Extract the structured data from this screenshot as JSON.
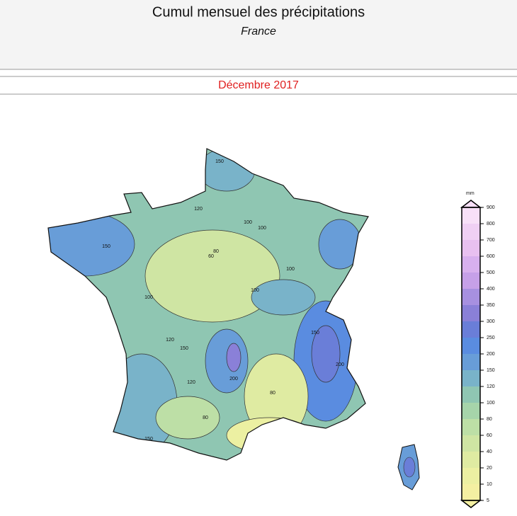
{
  "header": {
    "title": "Cumul mensuel des précipitations",
    "subtitle": "France",
    "period": "Décembre 2017"
  },
  "map": {
    "contour_labels": [
      "150",
      "150",
      "120",
      "100",
      "100",
      "80",
      "60",
      "100",
      "120",
      "150",
      "200",
      "100",
      "120",
      "80",
      "150",
      "200",
      "80",
      "100",
      "150"
    ]
  },
  "colorbar": {
    "unit": "mm",
    "ticks": [
      5,
      10,
      20,
      40,
      60,
      80,
      100,
      120,
      150,
      200,
      250,
      300,
      350,
      400,
      500,
      600,
      700,
      800,
      900
    ],
    "colors": [
      "#f4f0a2",
      "#ecf0a2",
      "#dfeba2",
      "#cfe5a3",
      "#bddfa6",
      "#a6d4aa",
      "#8fc6b2",
      "#79b3c9",
      "#689dd8",
      "#5a8ce0",
      "#6a7ed8",
      "#8a80d8",
      "#a790e0",
      "#c6a0e8",
      "#d8b0ee",
      "#e8c0f0",
      "#f0d0f4",
      "#f8e0f8"
    ]
  }
}
